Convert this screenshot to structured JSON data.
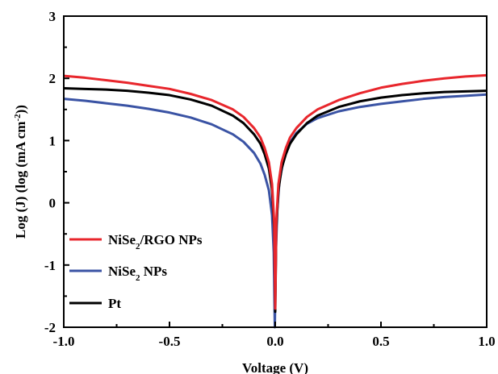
{
  "chart_data": {
    "type": "line",
    "xlabel": "Voltage (V)",
    "ylabel_parts": [
      "Log (J) (log (mA cm",
      "-2",
      "))"
    ],
    "xlim": [
      -1.0,
      1.0
    ],
    "ylim": [
      -2,
      3
    ],
    "xticks": [
      -1.0,
      -0.5,
      0.0,
      0.5,
      1.0
    ],
    "xtick_labels": [
      "-1.0",
      "-0.5",
      "0.0",
      "0.5",
      "1.0"
    ],
    "yticks": [
      -2,
      -1,
      0,
      1,
      2,
      3
    ],
    "ytick_labels": [
      "-2",
      "-1",
      "0",
      "1",
      "2",
      "3"
    ],
    "grid": false,
    "legend_position": "bottom-left",
    "series": [
      {
        "legend_parts": [
          "NiSe",
          "2",
          "/RGO NPs"
        ],
        "color": "#e8262c",
        "points": [
          [
            -1.0,
            2.04
          ],
          [
            -0.9,
            2.01
          ],
          [
            -0.8,
            1.97
          ],
          [
            -0.7,
            1.93
          ],
          [
            -0.6,
            1.88
          ],
          [
            -0.5,
            1.83
          ],
          [
            -0.4,
            1.75
          ],
          [
            -0.3,
            1.65
          ],
          [
            -0.2,
            1.5
          ],
          [
            -0.15,
            1.38
          ],
          [
            -0.1,
            1.2
          ],
          [
            -0.07,
            1.05
          ],
          [
            -0.05,
            0.88
          ],
          [
            -0.03,
            0.65
          ],
          [
            -0.015,
            0.3
          ],
          [
            -0.005,
            -0.3
          ],
          [
            0.0,
            -1.7
          ],
          [
            0.005,
            -0.3
          ],
          [
            0.015,
            0.3
          ],
          [
            0.03,
            0.65
          ],
          [
            0.05,
            0.88
          ],
          [
            0.07,
            1.05
          ],
          [
            0.1,
            1.2
          ],
          [
            0.15,
            1.38
          ],
          [
            0.2,
            1.5
          ],
          [
            0.3,
            1.65
          ],
          [
            0.4,
            1.76
          ],
          [
            0.5,
            1.85
          ],
          [
            0.6,
            1.91
          ],
          [
            0.7,
            1.96
          ],
          [
            0.8,
            2.0
          ],
          [
            0.9,
            2.03
          ],
          [
            1.0,
            2.05
          ]
        ]
      },
      {
        "legend_parts": [
          "NiSe",
          "2",
          " NPs"
        ],
        "color": "#3a53a4",
        "points": [
          [
            -1.0,
            1.67
          ],
          [
            -0.9,
            1.64
          ],
          [
            -0.8,
            1.6
          ],
          [
            -0.7,
            1.56
          ],
          [
            -0.6,
            1.51
          ],
          [
            -0.5,
            1.45
          ],
          [
            -0.4,
            1.37
          ],
          [
            -0.3,
            1.26
          ],
          [
            -0.2,
            1.1
          ],
          [
            -0.15,
            0.98
          ],
          [
            -0.1,
            0.8
          ],
          [
            -0.07,
            0.63
          ],
          [
            -0.05,
            0.45
          ],
          [
            -0.03,
            0.2
          ],
          [
            -0.015,
            -0.2
          ],
          [
            -0.007,
            -0.8
          ],
          [
            -0.002,
            -2.0
          ],
          [
            0.003,
            -0.8
          ],
          [
            0.01,
            -0.1
          ],
          [
            0.02,
            0.35
          ],
          [
            0.04,
            0.7
          ],
          [
            0.07,
            0.97
          ],
          [
            0.1,
            1.12
          ],
          [
            0.15,
            1.27
          ],
          [
            0.2,
            1.36
          ],
          [
            0.3,
            1.47
          ],
          [
            0.4,
            1.54
          ],
          [
            0.5,
            1.59
          ],
          [
            0.6,
            1.63
          ],
          [
            0.7,
            1.67
          ],
          [
            0.8,
            1.7
          ],
          [
            0.9,
            1.72
          ],
          [
            1.0,
            1.74
          ]
        ]
      },
      {
        "legend_parts": [
          "Pt"
        ],
        "color": "#000000",
        "points": [
          [
            -1.0,
            1.84
          ],
          [
            -0.9,
            1.83
          ],
          [
            -0.8,
            1.82
          ],
          [
            -0.7,
            1.8
          ],
          [
            -0.6,
            1.77
          ],
          [
            -0.5,
            1.73
          ],
          [
            -0.4,
            1.66
          ],
          [
            -0.3,
            1.56
          ],
          [
            -0.2,
            1.4
          ],
          [
            -0.15,
            1.28
          ],
          [
            -0.1,
            1.1
          ],
          [
            -0.07,
            0.95
          ],
          [
            -0.05,
            0.78
          ],
          [
            -0.03,
            0.55
          ],
          [
            -0.015,
            0.2
          ],
          [
            -0.005,
            -0.4
          ],
          [
            0.0,
            -1.75
          ],
          [
            0.005,
            -0.4
          ],
          [
            0.015,
            0.2
          ],
          [
            0.03,
            0.55
          ],
          [
            0.05,
            0.78
          ],
          [
            0.07,
            0.95
          ],
          [
            0.1,
            1.1
          ],
          [
            0.15,
            1.28
          ],
          [
            0.2,
            1.4
          ],
          [
            0.3,
            1.54
          ],
          [
            0.4,
            1.63
          ],
          [
            0.5,
            1.69
          ],
          [
            0.6,
            1.73
          ],
          [
            0.7,
            1.76
          ],
          [
            0.8,
            1.78
          ],
          [
            0.9,
            1.79
          ],
          [
            1.0,
            1.8
          ]
        ]
      }
    ]
  }
}
